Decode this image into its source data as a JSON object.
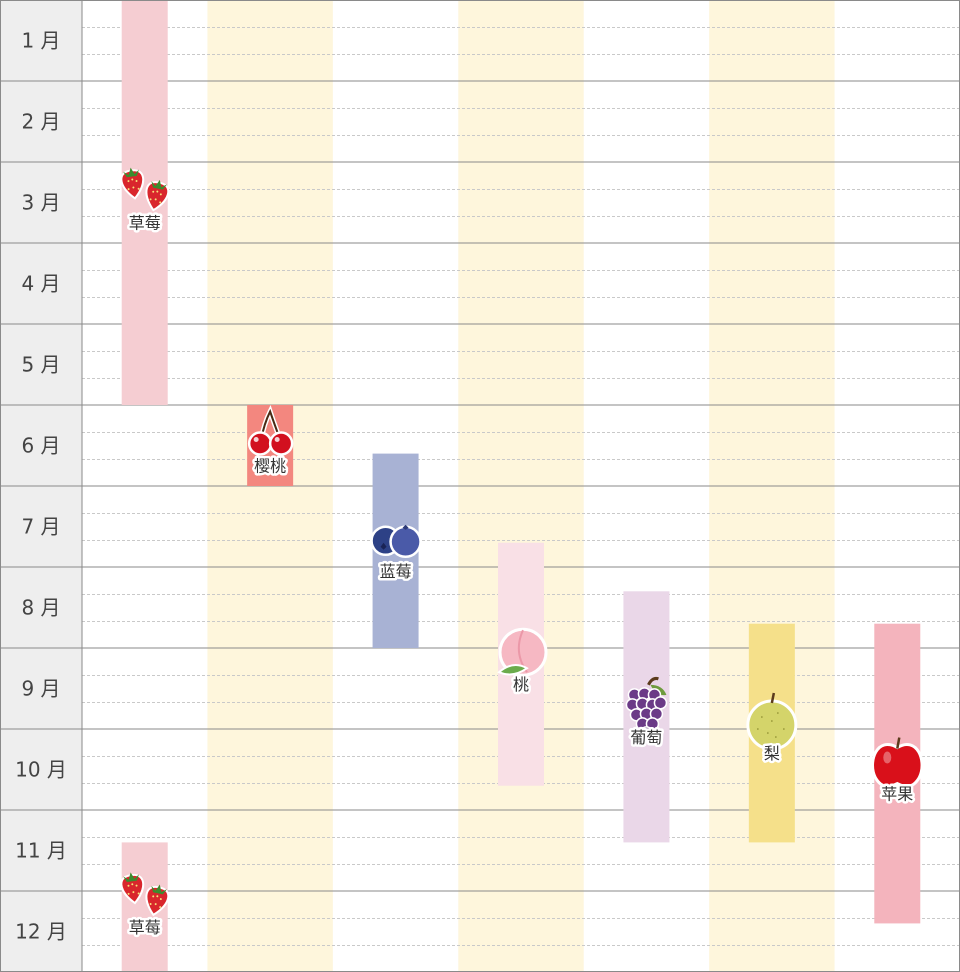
{
  "chart_data": {
    "type": "gantt",
    "title": "",
    "months": [
      "1 月",
      "2 月",
      "3 月",
      "4 月",
      "5 月",
      "6 月",
      "7 月",
      "8 月",
      "9 月",
      "10 月",
      "11 月",
      "12 月"
    ],
    "series": [
      {
        "name": "草莓",
        "icon": "strawberry-icon",
        "color": "#f5cdd2",
        "start": 1.0,
        "end": 5.0
      },
      {
        "name": "樱桃",
        "icon": "cherry-icon",
        "color": "#f3877f",
        "start": 6.0,
        "end": 6.0
      },
      {
        "name": "蓝莓",
        "icon": "blueberry-icon",
        "color": "#a8b2d4",
        "start": 6.6,
        "end": 8.0
      },
      {
        "name": "桃",
        "icon": "peach-icon",
        "color": "#f9e0e6",
        "start": 7.7,
        "end": 9.7
      },
      {
        "name": "葡萄",
        "icon": "grape-icon",
        "color": "#ead7e8",
        "start": 8.3,
        "end": 10.4
      },
      {
        "name": "梨",
        "icon": "pear-icon",
        "color": "#f5e08a",
        "start": 8.7,
        "end": 10.4
      },
      {
        "name": "苹果",
        "icon": "apple-icon",
        "color": "#f4b4bd",
        "start": 8.7,
        "end": 11.4
      },
      {
        "name": "草莓",
        "icon": "strawberry-icon",
        "color": "#f5cdd2",
        "start": 11.4,
        "end": 12.0
      }
    ],
    "bands_color": "#fef6dc",
    "grid": true
  }
}
